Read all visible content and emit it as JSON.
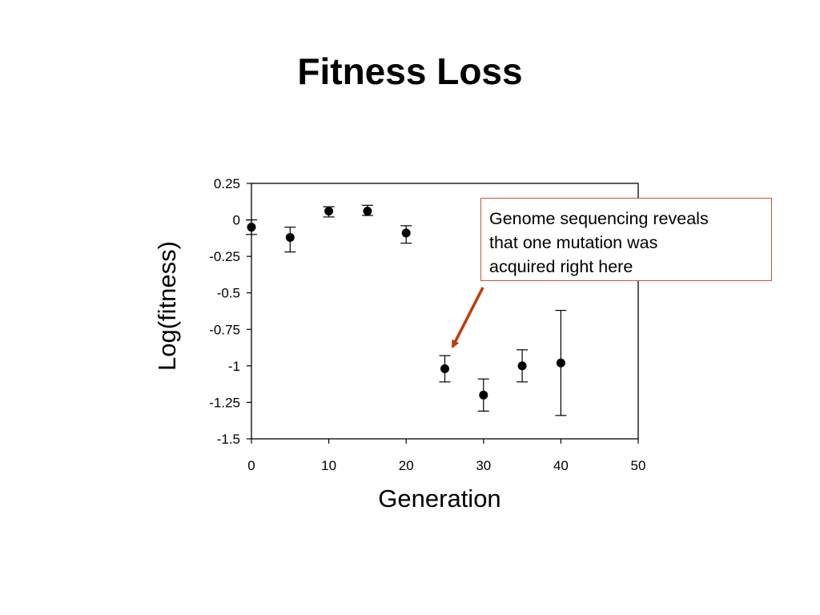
{
  "slide": {
    "title": "Fitness Loss"
  },
  "annotation": {
    "lines": [
      "Genome sequencing reveals",
      "that one mutation was",
      "acquired right here"
    ],
    "border_color": "#c0582d",
    "arrow_color": "#c0390b",
    "arrow_target": {
      "x": 26,
      "y": -0.87
    }
  },
  "chart_data": {
    "type": "scatter",
    "title": "Fitness Loss",
    "xlabel": "Generation",
    "ylabel": "Log(fitness)",
    "xlim": [
      0,
      50
    ],
    "ylim": [
      -1.5,
      0.25
    ],
    "xticks": [
      0,
      10,
      20,
      30,
      40,
      50
    ],
    "yticks": [
      0.25,
      0,
      -0.25,
      -0.5,
      -0.75,
      -1,
      -1.25,
      -1.5
    ],
    "ytick_labels": [
      "0.25",
      "0",
      "-0.25",
      "-0.5",
      "-0.75",
      "-1",
      "-1.25",
      "-1.5"
    ],
    "grid": false,
    "marker_color": "#000000",
    "points": [
      {
        "x": 0,
        "y": -0.05,
        "err_low": 0.05,
        "err_high": 0.05
      },
      {
        "x": 5,
        "y": -0.12,
        "err_low": 0.1,
        "err_high": 0.07
      },
      {
        "x": 10,
        "y": 0.06,
        "err_low": 0.04,
        "err_high": 0.03
      },
      {
        "x": 15,
        "y": 0.06,
        "err_low": 0.03,
        "err_high": 0.04
      },
      {
        "x": 20,
        "y": -0.09,
        "err_low": 0.07,
        "err_high": 0.05
      },
      {
        "x": 25,
        "y": -1.02,
        "err_low": 0.09,
        "err_high": 0.09
      },
      {
        "x": 30,
        "y": -1.2,
        "err_low": 0.11,
        "err_high": 0.11
      },
      {
        "x": 35,
        "y": -1.0,
        "err_low": 0.11,
        "err_high": 0.11
      },
      {
        "x": 40,
        "y": -0.98,
        "err_low": 0.36,
        "err_high": 0.36
      }
    ]
  }
}
